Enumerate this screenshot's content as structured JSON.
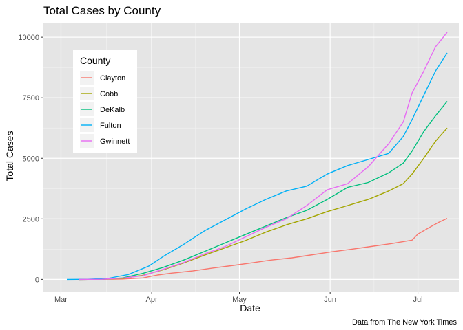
{
  "chart_data": {
    "type": "line",
    "title": "Total Cases by County",
    "xlabel": "Date",
    "ylabel": "Total Cases",
    "caption": "Data from The New York Times",
    "x_unit": "date",
    "x_range": [
      "2020-02-24",
      "2020-07-15"
    ],
    "ylim": [
      -500,
      10600
    ],
    "x_ticks": [
      {
        "date": "2020-03-01",
        "label": "Mar"
      },
      {
        "date": "2020-04-01",
        "label": "Apr"
      },
      {
        "date": "2020-05-01",
        "label": "May"
      },
      {
        "date": "2020-06-01",
        "label": "Jun"
      },
      {
        "date": "2020-07-01",
        "label": "Jul"
      }
    ],
    "y_ticks": [
      0,
      2500,
      5000,
      7500,
      10000
    ],
    "y_tick_labels": [
      "0",
      "2500",
      "5000",
      "7500",
      "10000"
    ],
    "grid": true,
    "background": "#e5e5e5",
    "legend": {
      "title": "County",
      "position": "top-left inside"
    },
    "series": [
      {
        "name": "Clayton",
        "color": "#f8766d",
        "points": [
          [
            "2020-03-07",
            0
          ],
          [
            "2020-03-15",
            2
          ],
          [
            "2020-03-22",
            15
          ],
          [
            "2020-03-29",
            60
          ],
          [
            "2020-04-03",
            180
          ],
          [
            "2020-04-08",
            260
          ],
          [
            "2020-04-15",
            350
          ],
          [
            "2020-04-22",
            470
          ],
          [
            "2020-04-29",
            580
          ],
          [
            "2020-05-05",
            680
          ],
          [
            "2020-05-12",
            800
          ],
          [
            "2020-05-19",
            890
          ],
          [
            "2020-05-26",
            1020
          ],
          [
            "2020-06-01",
            1130
          ],
          [
            "2020-06-08",
            1240
          ],
          [
            "2020-06-15",
            1360
          ],
          [
            "2020-06-22",
            1480
          ],
          [
            "2020-06-29",
            1620
          ],
          [
            "2020-07-01",
            1870
          ],
          [
            "2020-07-05",
            2150
          ],
          [
            "2020-07-08",
            2350
          ],
          [
            "2020-07-11",
            2520
          ]
        ]
      },
      {
        "name": "Cobb",
        "color": "#a3a500",
        "points": [
          [
            "2020-03-07",
            0
          ],
          [
            "2020-03-15",
            5
          ],
          [
            "2020-03-22",
            40
          ],
          [
            "2020-03-29",
            170
          ],
          [
            "2020-04-05",
            400
          ],
          [
            "2020-04-12",
            680
          ],
          [
            "2020-04-19",
            1000
          ],
          [
            "2020-04-26",
            1300
          ],
          [
            "2020-05-03",
            1600
          ],
          [
            "2020-05-10",
            1950
          ],
          [
            "2020-05-17",
            2250
          ],
          [
            "2020-05-24",
            2500
          ],
          [
            "2020-05-31",
            2800
          ],
          [
            "2020-06-07",
            3050
          ],
          [
            "2020-06-14",
            3300
          ],
          [
            "2020-06-21",
            3650
          ],
          [
            "2020-06-26",
            3950
          ],
          [
            "2020-06-29",
            4350
          ],
          [
            "2020-07-03",
            5000
          ],
          [
            "2020-07-07",
            5700
          ],
          [
            "2020-07-11",
            6250
          ]
        ]
      },
      {
        "name": "DeKalb",
        "color": "#00bf7d",
        "points": [
          [
            "2020-03-07",
            0
          ],
          [
            "2020-03-15",
            5
          ],
          [
            "2020-03-22",
            60
          ],
          [
            "2020-03-29",
            250
          ],
          [
            "2020-04-05",
            500
          ],
          [
            "2020-04-12",
            800
          ],
          [
            "2020-04-19",
            1150
          ],
          [
            "2020-04-26",
            1500
          ],
          [
            "2020-05-03",
            1850
          ],
          [
            "2020-05-10",
            2200
          ],
          [
            "2020-05-17",
            2550
          ],
          [
            "2020-05-24",
            2850
          ],
          [
            "2020-05-31",
            3300
          ],
          [
            "2020-06-07",
            3800
          ],
          [
            "2020-06-14",
            4000
          ],
          [
            "2020-06-21",
            4400
          ],
          [
            "2020-06-26",
            4800
          ],
          [
            "2020-06-29",
            5300
          ],
          [
            "2020-07-03",
            6100
          ],
          [
            "2020-07-07",
            6750
          ],
          [
            "2020-07-11",
            7350
          ]
        ]
      },
      {
        "name": "Fulton",
        "color": "#00b0f6",
        "points": [
          [
            "2020-03-03",
            0
          ],
          [
            "2020-03-10",
            5
          ],
          [
            "2020-03-17",
            40
          ],
          [
            "2020-03-24",
            200
          ],
          [
            "2020-03-31",
            550
          ],
          [
            "2020-04-05",
            950
          ],
          [
            "2020-04-12",
            1450
          ],
          [
            "2020-04-19",
            2000
          ],
          [
            "2020-04-26",
            2450
          ],
          [
            "2020-05-03",
            2900
          ],
          [
            "2020-05-10",
            3300
          ],
          [
            "2020-05-17",
            3650
          ],
          [
            "2020-05-24",
            3850
          ],
          [
            "2020-05-31",
            4350
          ],
          [
            "2020-06-07",
            4700
          ],
          [
            "2020-06-14",
            4950
          ],
          [
            "2020-06-21",
            5200
          ],
          [
            "2020-06-26",
            5900
          ],
          [
            "2020-06-29",
            6600
          ],
          [
            "2020-07-03",
            7600
          ],
          [
            "2020-07-07",
            8600
          ],
          [
            "2020-07-11",
            9350
          ]
        ]
      },
      {
        "name": "Gwinnett",
        "color": "#e76bf3",
        "points": [
          [
            "2020-03-07",
            0
          ],
          [
            "2020-03-15",
            4
          ],
          [
            "2020-03-22",
            50
          ],
          [
            "2020-03-29",
            150
          ],
          [
            "2020-04-05",
            420
          ],
          [
            "2020-04-12",
            700
          ],
          [
            "2020-04-19",
            1050
          ],
          [
            "2020-04-26",
            1350
          ],
          [
            "2020-05-03",
            1750
          ],
          [
            "2020-05-10",
            2150
          ],
          [
            "2020-05-17",
            2500
          ],
          [
            "2020-05-24",
            3050
          ],
          [
            "2020-05-31",
            3700
          ],
          [
            "2020-06-07",
            3950
          ],
          [
            "2020-06-14",
            4650
          ],
          [
            "2020-06-21",
            5600
          ],
          [
            "2020-06-26",
            6500
          ],
          [
            "2020-06-29",
            7700
          ],
          [
            "2020-07-03",
            8600
          ],
          [
            "2020-07-07",
            9600
          ],
          [
            "2020-07-11",
            10200
          ]
        ]
      }
    ]
  }
}
